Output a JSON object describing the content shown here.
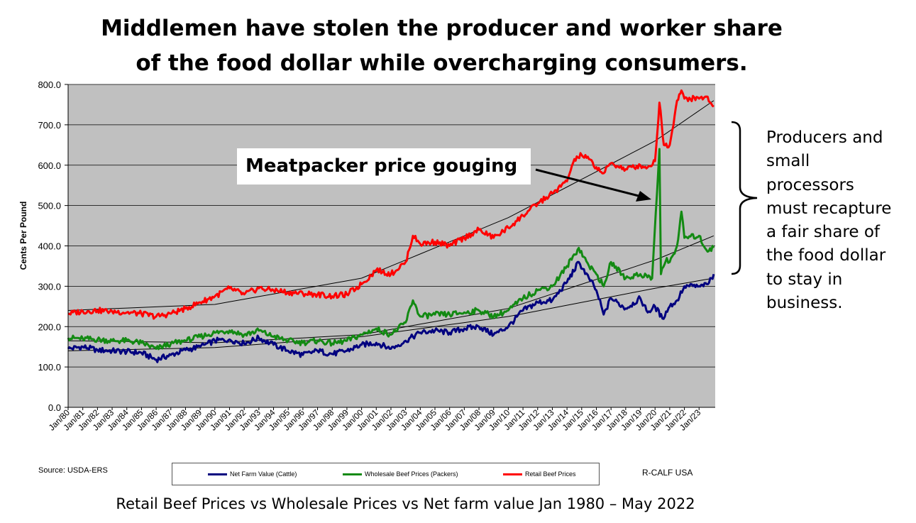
{
  "headline": {
    "line1": "Middlemen have stolen the producer and worker share",
    "line2": "of the food dollar while overcharging consumers."
  },
  "callout": "Meatpacker price gouging",
  "side_note": [
    "Producers and",
    "small",
    "processors",
    "must recapture",
    "a fair share of",
    "the food dollar",
    "to stay in",
    "business."
  ],
  "source": "Source: USDA-ERS",
  "credit": "R-CALF USA",
  "caption": "Retail Beef Prices vs Wholesale Prices vs Net farm value Jan 1980 – May 2022",
  "colors": {
    "plot_bg": "#c0c0c0",
    "net_farm": "#00007f",
    "wholesale": "#138a13",
    "retail": "#ff0000"
  },
  "chart_data": {
    "type": "line",
    "title": "",
    "xlabel": "",
    "ylabel": "Cents Per Pound",
    "ylim": [
      0,
      800
    ],
    "yticks": [
      "0.0",
      "100.0",
      "200.0",
      "300.0",
      "400.0",
      "500.0",
      "600.0",
      "700.0",
      "800.0"
    ],
    "grid": true,
    "legend_position": "bottom",
    "x_labels": [
      "Jan/80",
      "Jan/81",
      "Jan/82",
      "Jan/83",
      "Jan/84",
      "Jan/85",
      "Jan/86",
      "Jan/87",
      "Jan/88",
      "Jan/89",
      "Jan/90",
      "Jan/91",
      "Jan/92",
      "Jan/93",
      "Jan/94",
      "Jan/95",
      "Jan/96",
      "Jan/97",
      "Jan/98",
      "Jan/99",
      "Jan/00",
      "Jan/01",
      "Jan/02",
      "Jan/03",
      "Jan/04",
      "Jan/05",
      "Jan/06",
      "Jan/07",
      "Jan/08",
      "Jan/09",
      "Jan/10",
      "Jan/11",
      "Jan/12",
      "Jan/13",
      "Jan/14",
      "Jan/15",
      "Jan/16",
      "Jan/17",
      "Jan/18",
      "Jan/19",
      "Jan/20",
      "Jan/21",
      "Jan/22",
      "Jan/23"
    ],
    "x_start": 1980,
    "x_end": 2024.1,
    "series": [
      {
        "name": "Net Farm Value (Cattle)",
        "color": "#00007f",
        "points": [
          [
            1980,
            145
          ],
          [
            1981,
            150
          ],
          [
            1982,
            142
          ],
          [
            1983,
            140
          ],
          [
            1984,
            138
          ],
          [
            1985,
            135
          ],
          [
            1986,
            118
          ],
          [
            1987,
            130
          ],
          [
            1988,
            142
          ],
          [
            1989,
            150
          ],
          [
            1990,
            165
          ],
          [
            1991,
            168
          ],
          [
            1992,
            158
          ],
          [
            1993,
            172
          ],
          [
            1994,
            155
          ],
          [
            1995,
            140
          ],
          [
            1996,
            130
          ],
          [
            1997,
            140
          ],
          [
            1998,
            132
          ],
          [
            1999,
            140
          ],
          [
            2000,
            155
          ],
          [
            2001,
            160
          ],
          [
            2002,
            145
          ],
          [
            2003,
            165
          ],
          [
            2004,
            185
          ],
          [
            2005,
            190
          ],
          [
            2006,
            185
          ],
          [
            2007,
            195
          ],
          [
            2008,
            200
          ],
          [
            2009,
            180
          ],
          [
            2010,
            200
          ],
          [
            2011,
            240
          ],
          [
            2012,
            260
          ],
          [
            2013,
            265
          ],
          [
            2014,
            310
          ],
          [
            2014.8,
            360
          ],
          [
            2015.5,
            320
          ],
          [
            2016,
            290
          ],
          [
            2016.5,
            230
          ],
          [
            2017,
            270
          ],
          [
            2018,
            245
          ],
          [
            2019,
            270
          ],
          [
            2019.5,
            235
          ],
          [
            2020,
            250
          ],
          [
            2020.5,
            220
          ],
          [
            2021,
            250
          ],
          [
            2021.5,
            265
          ],
          [
            2022,
            300
          ],
          [
            2023,
            300
          ],
          [
            2023.3,
            300
          ],
          [
            2023.6,
            305
          ],
          [
            2024,
            330
          ]
        ],
        "trend": [
          [
            1980,
            140
          ],
          [
            1990,
            148
          ],
          [
            2000,
            175
          ],
          [
            2010,
            225
          ],
          [
            2020,
            295
          ],
          [
            2024,
            320
          ]
        ]
      },
      {
        "name": "Wholesale Beef Prices (Packers)",
        "color": "#138a13",
        "points": [
          [
            1980,
            172
          ],
          [
            1981,
            170
          ],
          [
            1982,
            168
          ],
          [
            1983,
            165
          ],
          [
            1984,
            165
          ],
          [
            1985,
            160
          ],
          [
            1986,
            145
          ],
          [
            1987,
            158
          ],
          [
            1988,
            165
          ],
          [
            1989,
            175
          ],
          [
            1990,
            185
          ],
          [
            1991,
            190
          ],
          [
            1992,
            180
          ],
          [
            1993,
            190
          ],
          [
            1994,
            175
          ],
          [
            1995,
            165
          ],
          [
            1996,
            160
          ],
          [
            1997,
            165
          ],
          [
            1998,
            158
          ],
          [
            1999,
            165
          ],
          [
            2000,
            180
          ],
          [
            2001,
            195
          ],
          [
            2002,
            180
          ],
          [
            2003,
            210
          ],
          [
            2003.5,
            265
          ],
          [
            2004,
            225
          ],
          [
            2005,
            230
          ],
          [
            2006,
            230
          ],
          [
            2007,
            235
          ],
          [
            2008,
            240
          ],
          [
            2009,
            225
          ],
          [
            2010,
            240
          ],
          [
            2011,
            270
          ],
          [
            2012,
            290
          ],
          [
            2013,
            300
          ],
          [
            2014,
            350
          ],
          [
            2014.8,
            395
          ],
          [
            2015.5,
            350
          ],
          [
            2016,
            330
          ],
          [
            2016.5,
            300
          ],
          [
            2017,
            360
          ],
          [
            2018,
            320
          ],
          [
            2019,
            330
          ],
          [
            2019.8,
            320
          ],
          [
            2020.3,
            640
          ],
          [
            2020.4,
            330
          ],
          [
            2020.8,
            370
          ],
          [
            2021,
            360
          ],
          [
            2021.5,
            400
          ],
          [
            2021.8,
            485
          ],
          [
            2022,
            420
          ],
          [
            2023,
            425
          ],
          [
            2023.5,
            390
          ],
          [
            2024,
            395
          ]
        ],
        "trend": [
          [
            1980,
            165
          ],
          [
            1990,
            160
          ],
          [
            2000,
            180
          ],
          [
            2010,
            245
          ],
          [
            2020,
            365
          ],
          [
            2024,
            425
          ]
        ]
      },
      {
        "name": "Retail Beef Prices",
        "color": "#ff0000",
        "points": [
          [
            1980,
            232
          ],
          [
            1981,
            238
          ],
          [
            1982,
            240
          ],
          [
            1983,
            238
          ],
          [
            1984,
            235
          ],
          [
            1985,
            232
          ],
          [
            1986,
            225
          ],
          [
            1987,
            232
          ],
          [
            1988,
            245
          ],
          [
            1989,
            260
          ],
          [
            1990,
            275
          ],
          [
            1991,
            295
          ],
          [
            1992,
            280
          ],
          [
            1993,
            295
          ],
          [
            1994,
            290
          ],
          [
            1995,
            285
          ],
          [
            1996,
            282
          ],
          [
            1997,
            280
          ],
          [
            1998,
            275
          ],
          [
            1999,
            280
          ],
          [
            2000,
            305
          ],
          [
            2001,
            340
          ],
          [
            2002,
            330
          ],
          [
            2003,
            360
          ],
          [
            2003.5,
            425
          ],
          [
            2004,
            405
          ],
          [
            2005,
            410
          ],
          [
            2006,
            400
          ],
          [
            2007,
            420
          ],
          [
            2008,
            440
          ],
          [
            2009,
            420
          ],
          [
            2010,
            445
          ],
          [
            2011,
            475
          ],
          [
            2012,
            505
          ],
          [
            2013,
            530
          ],
          [
            2014,
            560
          ],
          [
            2014.5,
            615
          ],
          [
            2015,
            625
          ],
          [
            2015.5,
            615
          ],
          [
            2016,
            595
          ],
          [
            2016.5,
            580
          ],
          [
            2017,
            605
          ],
          [
            2018,
            590
          ],
          [
            2019,
            600
          ],
          [
            2019.5,
            595
          ],
          [
            2020,
            610
          ],
          [
            2020.3,
            755
          ],
          [
            2020.6,
            650
          ],
          [
            2021,
            650
          ],
          [
            2021.5,
            760
          ],
          [
            2021.8,
            785
          ],
          [
            2022,
            765
          ],
          [
            2023,
            765
          ],
          [
            2023.5,
            770
          ],
          [
            2024,
            745
          ]
        ],
        "trend": [
          [
            1980,
            240
          ],
          [
            1990,
            255
          ],
          [
            2000,
            320
          ],
          [
            2010,
            470
          ],
          [
            2020,
            660
          ],
          [
            2024,
            760
          ]
        ]
      }
    ]
  }
}
